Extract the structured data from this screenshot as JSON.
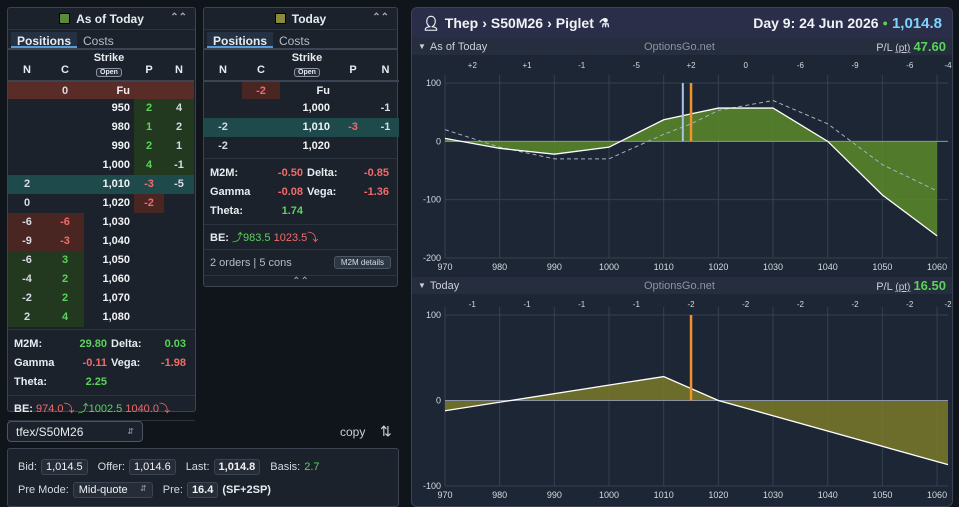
{
  "left_panel": {
    "title": "As of Today",
    "color": "#5a8a3a",
    "tabs": [
      "Positions",
      "Costs"
    ],
    "headers": {
      "n1": "N",
      "c": "C",
      "strike": "Strike",
      "open": "Open",
      "p": "P",
      "n2": "N"
    },
    "rows": [
      {
        "n1": "",
        "c": "0",
        "strike": "Fu",
        "p": "",
        "n2": "",
        "bg": "#5a2c28"
      },
      {
        "n1": "",
        "c": "",
        "strike": "950",
        "p": "2",
        "n2": "4",
        "bg": "",
        "pc": "green",
        "n2c": "dim"
      },
      {
        "n1": "",
        "c": "",
        "strike": "980",
        "p": "1",
        "n2": "2",
        "bg": "",
        "pc": "green",
        "n2c": "dim"
      },
      {
        "n1": "",
        "c": "",
        "strike": "990",
        "p": "2",
        "n2": "1",
        "bg": "",
        "pc": "green",
        "n2c": "dim"
      },
      {
        "n1": "",
        "c": "",
        "strike": "1,000",
        "p": "4",
        "n2": "-1",
        "bg": "",
        "pc": "green",
        "n2c": "dim"
      },
      {
        "n1": "2",
        "c": "",
        "strike": "1,010",
        "p": "-3",
        "n2": "-5",
        "bg": "#1f4a4c",
        "pc": "red",
        "n2c": "dim"
      },
      {
        "n1": "0",
        "c": "",
        "strike": "1,020",
        "p": "-2",
        "n2": "",
        "bg": "",
        "pc": "red",
        "n2c": "dim"
      },
      {
        "n1": "-6",
        "c": "-6",
        "strike": "1,030",
        "p": "",
        "n2": "",
        "bg": "",
        "cc": "red"
      },
      {
        "n1": "-9",
        "c": "-3",
        "strike": "1,040",
        "p": "",
        "n2": "",
        "bg": "",
        "cc": "red"
      },
      {
        "n1": "-6",
        "c": "3",
        "strike": "1,050",
        "p": "",
        "n2": "",
        "bg": "",
        "cc": "green"
      },
      {
        "n1": "-4",
        "c": "2",
        "strike": "1,060",
        "p": "",
        "n2": "",
        "bg": "",
        "cc": "green"
      },
      {
        "n1": "-2",
        "c": "2",
        "strike": "1,070",
        "p": "",
        "n2": "",
        "bg": "",
        "cc": "green"
      },
      {
        "n1": "2",
        "c": "4",
        "strike": "1,080",
        "p": "",
        "n2": "",
        "bg": "",
        "cc": "green"
      }
    ],
    "m2m_label": "M2M:",
    "m2m": "29.80",
    "delta_label": "Delta:",
    "delta": "0.03",
    "gamma_label": "Gamma",
    "gamma": "-0.11",
    "vega_label": "Vega:",
    "vega": "-1.98",
    "theta_label": "Theta:",
    "theta": "2.25",
    "be_label": "BE:",
    "be1": "974.0",
    "be2": "1002.5",
    "be3": "1040.0"
  },
  "mid_panel": {
    "title": "Today",
    "color": "#8a8a3a",
    "tabs": [
      "Positions",
      "Costs"
    ],
    "headers": {
      "n1": "N",
      "c": "C",
      "strike": "Strike",
      "open": "Open",
      "p": "P",
      "n2": "N"
    },
    "rows": [
      {
        "n1": "",
        "c": "-2",
        "strike": "Fu",
        "p": "",
        "n2": "",
        "bg": "",
        "cc": "red"
      },
      {
        "n1": "",
        "c": "",
        "strike": "1,000",
        "p": "",
        "n2": "-1",
        "bg": ""
      },
      {
        "n1": "-2",
        "c": "",
        "strike": "1,010",
        "p": "-3",
        "n2": "-1",
        "bg": "#1f4a4c",
        "pc": "red"
      },
      {
        "n1": "-2",
        "c": "",
        "strike": "1,020",
        "p": "",
        "n2": "",
        "bg": ""
      }
    ],
    "m2m_label": "M2M:",
    "m2m": "-0.50",
    "delta_label": "Delta:",
    "delta": "-0.85",
    "gamma_label": "Gamma",
    "gamma": "-0.08",
    "vega_label": "Vega:",
    "vega": "-1.36",
    "theta_label": "Theta:",
    "theta": "1.74",
    "be_label": "BE:",
    "be1": "983.5",
    "be2": "1023.5",
    "orders": "2 orders | 5 cons",
    "m2m_details": "M2M details"
  },
  "symbol": {
    "value": "tfex/S50M26",
    "copy": "copy"
  },
  "quote": {
    "bid_label": "Bid:",
    "bid": "1,014.5",
    "offer_label": "Offer:",
    "offer": "1,014.6",
    "last_label": "Last:",
    "last": "1,014.8",
    "basis_label": "Basis:",
    "basis": "2.7",
    "premode_label": "Pre Mode:",
    "premode": "Mid-quote",
    "pre_label": "Pre:",
    "pre": "16.4",
    "pre_extra": "(SF+2SP)"
  },
  "chart_header": {
    "user": "Thep",
    "instrument": "S50M26",
    "strategy": "Piglet",
    "day": "Day 9: 24 Jun 2026",
    "price": "1,014.8"
  },
  "chart_data": [
    {
      "type": "area",
      "title": "As of Today",
      "site": "OptionsGo.net",
      "pl_label": "P/L",
      "pl_unit": "(pt)",
      "pl_value": "47.60",
      "x": [
        970,
        980,
        990,
        1000,
        1010,
        1015,
        1020,
        1030,
        1040,
        1050,
        1060
      ],
      "values": [
        5,
        -12,
        -22,
        -10,
        37,
        47,
        57,
        57,
        0,
        -92,
        -162
      ],
      "dashed": [
        20,
        -10,
        -30,
        -30,
        12,
        30,
        53,
        70,
        30,
        -40,
        -85
      ],
      "xlim": [
        970,
        1062
      ],
      "ylim": [
        -200,
        100
      ],
      "yticks": [
        100,
        0,
        -100,
        -200
      ],
      "xticks": [
        970,
        980,
        990,
        1000,
        1010,
        1020,
        1030,
        1040,
        1050,
        1060
      ],
      "top_labels": [
        {
          "x": 975,
          "t": "+2"
        },
        {
          "x": 985,
          "t": "+1"
        },
        {
          "x": 995,
          "t": "-1"
        },
        {
          "x": 1005,
          "t": "-5"
        },
        {
          "x": 1015,
          "t": "+2"
        },
        {
          "x": 1025,
          "t": "0"
        },
        {
          "x": 1035,
          "t": "-6"
        },
        {
          "x": 1045,
          "t": "-9"
        },
        {
          "x": 1055,
          "t": "-6"
        },
        {
          "x": 1062,
          "t": "-4"
        }
      ],
      "current_price": 1015,
      "blue_line": 1013.5,
      "fill_color": "#5a8a2a"
    },
    {
      "type": "area",
      "title": "Today",
      "site": "OptionsGo.net",
      "pl_label": "P/L",
      "pl_unit": "(pt)",
      "pl_value": "16.50",
      "x": [
        970,
        1010,
        1020,
        1062
      ],
      "values": [
        -12,
        28,
        0,
        -75
      ],
      "xlim": [
        970,
        1062
      ],
      "ylim": [
        -100,
        100
      ],
      "yticks": [
        100,
        0,
        -100
      ],
      "xticks": [
        970,
        980,
        990,
        1000,
        1010,
        1020,
        1030,
        1040,
        1050,
        1060
      ],
      "top_labels": [
        {
          "x": 975,
          "t": "-1"
        },
        {
          "x": 985,
          "t": "-1"
        },
        {
          "x": 995,
          "t": "-1"
        },
        {
          "x": 1005,
          "t": "-1"
        },
        {
          "x": 1015,
          "t": "-2"
        },
        {
          "x": 1025,
          "t": "-2"
        },
        {
          "x": 1035,
          "t": "-2"
        },
        {
          "x": 1045,
          "t": "-2"
        },
        {
          "x": 1055,
          "t": "-2"
        },
        {
          "x": 1062,
          "t": "-2"
        }
      ],
      "current_price": 1015,
      "fill_color": "#7a7a2a"
    }
  ]
}
